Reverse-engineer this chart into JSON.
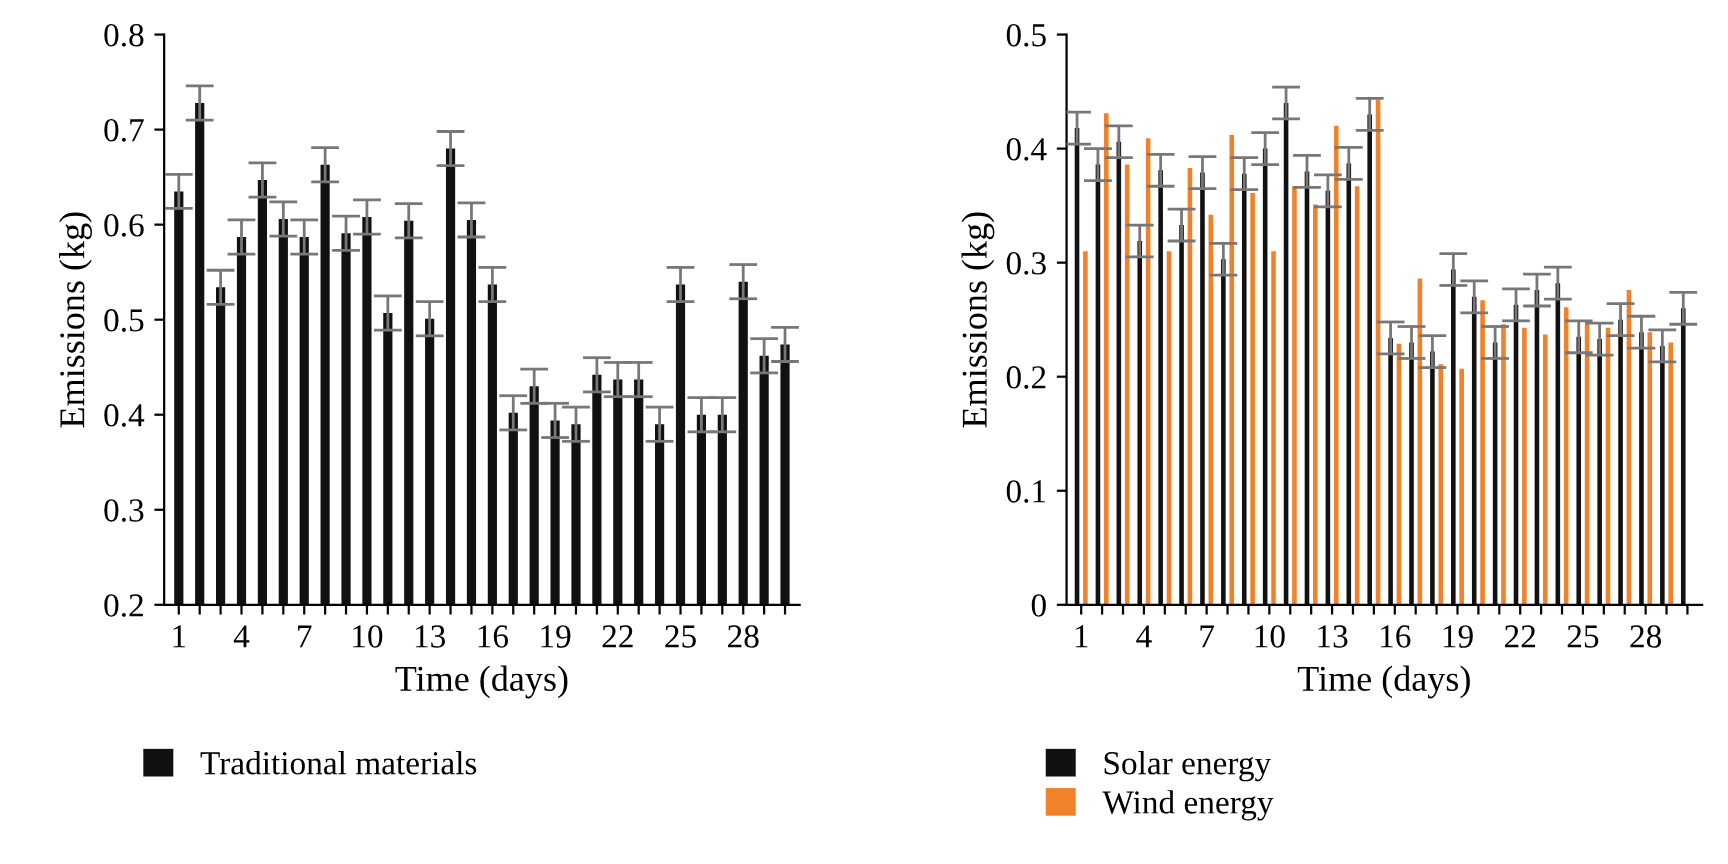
{
  "chart_data": [
    {
      "type": "bar",
      "xlabel": "Time (days)",
      "ylabel": "Emissions (kg)",
      "legend": "bottom left",
      "categories": [
        "1",
        null,
        null,
        "4",
        null,
        null,
        "7",
        null,
        null,
        "10",
        null,
        null,
        "13",
        null,
        null,
        "16",
        null,
        null,
        "19",
        null,
        null,
        "22",
        null,
        null,
        "25",
        null,
        null,
        "28",
        null,
        null
      ],
      "ylim": [
        0.2,
        0.8
      ],
      "yticks": [
        0.2,
        0.3,
        0.4,
        0.5,
        0.6,
        0.7,
        0.8
      ],
      "series": [
        {
          "name": "Traditional materials",
          "color": "#111111",
          "values": [
            0.635,
            0.728,
            0.534,
            0.587,
            0.647,
            0.606,
            0.587,
            0.663,
            0.591,
            0.608,
            0.507,
            0.604,
            0.501,
            0.68,
            0.605,
            0.537,
            0.402,
            0.43,
            0.394,
            0.39,
            0.442,
            0.437,
            0.437,
            0.39,
            0.537,
            0.4,
            0.4,
            0.54,
            0.462,
            0.474
          ],
          "errors": [
            0.018,
            0.018,
            0.018,
            0.018,
            0.018,
            0.018,
            0.018,
            0.018,
            0.018,
            0.018,
            0.018,
            0.018,
            0.018,
            0.018,
            0.018,
            0.018,
            0.018,
            0.018,
            0.018,
            0.018,
            0.018,
            0.018,
            0.018,
            0.018,
            0.018,
            0.018,
            0.018,
            0.018,
            0.018,
            0.018
          ]
        }
      ]
    },
    {
      "type": "bar",
      "xlabel": "Time (days)",
      "ylabel": "Emissions (kg)",
      "legend": "bottom left",
      "categories": [
        "1",
        null,
        null,
        "4",
        null,
        null,
        "7",
        null,
        null,
        "10",
        null,
        null,
        "13",
        null,
        null,
        "16",
        null,
        null,
        "19",
        null,
        null,
        "22",
        null,
        null,
        "25",
        null,
        null,
        "28",
        null,
        null
      ],
      "ylim": [
        0,
        0.5
      ],
      "yticks": [
        0,
        0.1,
        0.2,
        0.3,
        0.4,
        0.5
      ],
      "series": [
        {
          "name": "Solar energy",
          "color": "#111111",
          "values": [
            0.418,
            0.386,
            0.406,
            0.319,
            0.381,
            0.333,
            0.379,
            0.303,
            0.378,
            0.4,
            0.44,
            0.38,
            0.363,
            0.387,
            0.43,
            0.234,
            0.23,
            0.222,
            0.294,
            0.27,
            0.23,
            0.263,
            0.276,
            0.282,
            0.235,
            0.233,
            0.25,
            0.239,
            0.227,
            0.26
          ],
          "errors": [
            0.014,
            0.014,
            0.014,
            0.014,
            0.014,
            0.014,
            0.014,
            0.014,
            0.014,
            0.014,
            0.014,
            0.014,
            0.014,
            0.014,
            0.014,
            0.014,
            0.014,
            0.014,
            0.014,
            0.014,
            0.014,
            0.014,
            0.014,
            0.014,
            0.014,
            0.014,
            0.014,
            0.014,
            0.014,
            0.014
          ]
        },
        {
          "name": "Wind energy",
          "color": "#f0822a",
          "values": [
            0.31,
            0.431,
            0.386,
            0.409,
            0.31,
            0.383,
            0.342,
            0.412,
            0.361,
            0.31,
            0.367,
            0.351,
            0.42,
            0.367,
            0.443,
            0.229,
            0.286,
            0.211,
            0.207,
            0.267,
            0.246,
            0.243,
            0.237,
            0.261,
            0.249,
            0.243,
            0.276,
            0.239,
            0.23,
            null
          ]
        }
      ]
    }
  ]
}
